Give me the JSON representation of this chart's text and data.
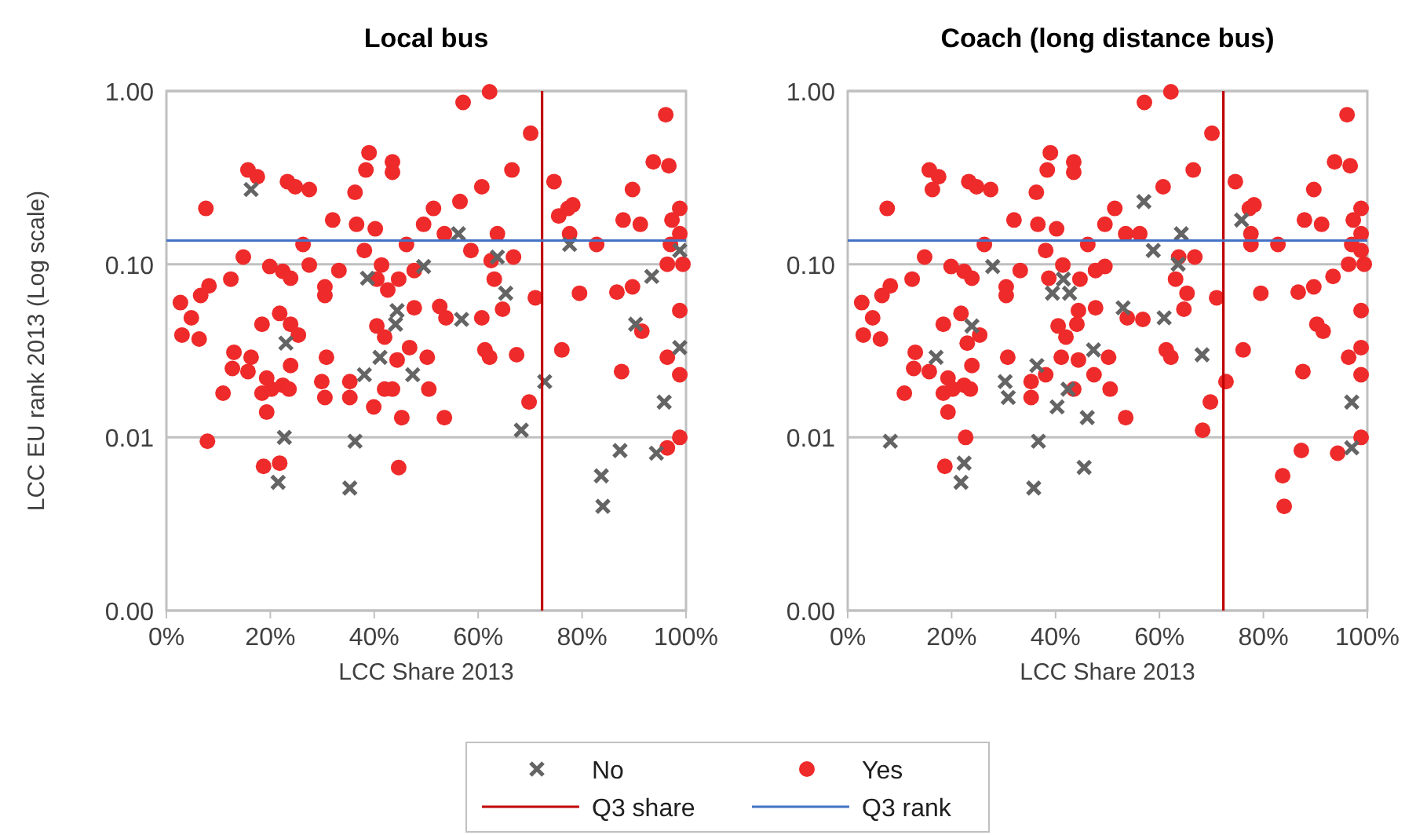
{
  "chart_data": [
    {
      "type": "scatter",
      "title": "Local bus",
      "xlabel": "LCC Share 2013",
      "ylabel": "LCC EU rank 2013 (Log scale)",
      "log": "y",
      "grid": "y",
      "legend": "bottom",
      "xlim": [
        0,
        100
      ],
      "xticks": [
        {
          "value": 0,
          "label": "0%"
        },
        {
          "value": 20,
          "label": "20%"
        },
        {
          "value": 40,
          "label": "40%"
        },
        {
          "value": 60,
          "label": "60%"
        },
        {
          "value": 80,
          "label": "80%"
        },
        {
          "value": 100,
          "label": "100%"
        }
      ],
      "ylim": [
        0.001,
        1
      ],
      "yticks": [
        {
          "value": 0.001,
          "label": "0.00"
        },
        {
          "value": 0.01,
          "label": "0.01"
        },
        {
          "value": 0.1,
          "label": "0.10"
        },
        {
          "value": 1,
          "label": "1.00"
        }
      ],
      "series": [
        {
          "name": "No",
          "color": "#646464",
          "marker": "cross",
          "x": [
            16.3,
            38.7,
            49.5,
            44.4,
            44.1,
            23.0,
            41.1,
            38.1,
            47.4,
            22.7,
            36.3,
            21.5,
            35.3,
            56.2,
            63.7,
            65.3,
            56.8,
            77.6,
            93.4,
            90.3,
            98.8,
            98.8,
            72.8,
            95.8,
            68.3,
            87.3,
            94.3,
            83.7,
            84.0
          ],
          "values": [
            0.27,
            0.083,
            0.097,
            0.054,
            0.045,
            0.035,
            0.029,
            0.023,
            0.023,
            0.01,
            0.0095,
            0.0055,
            0.0051,
            0.15,
            0.11,
            0.068,
            0.048,
            0.13,
            0.085,
            0.045,
            0.033,
            0.12,
            0.021,
            0.016,
            0.011,
            0.0084,
            0.0081,
            0.006,
            0.004
          ]
        },
        {
          "name": "Yes",
          "color": "#ee2a2a",
          "marker": "circle",
          "x": [
            7.6,
            15.7,
            17.5,
            23.3,
            24.8,
            27.5,
            39.0,
            38.4,
            43.5,
            43.5,
            36.3,
            32.0,
            36.6,
            40.2,
            26.3,
            38.1,
            46.2,
            49.5,
            14.8,
            19.9,
            22.4,
            23.9,
            27.5,
            33.2,
            41.4,
            12.4,
            8.2,
            6.6,
            2.7,
            4.8,
            30.5,
            30.5,
            40.5,
            42.6,
            44.7,
            47.7,
            47.7,
            18.4,
            21.8,
            23.9,
            25.4,
            40.5,
            42.0,
            3.0,
            6.3,
            13.0,
            12.7,
            16.3,
            15.7,
            23.9,
            30.8,
            44.4,
            46.8,
            19.3,
            22.4,
            23.6,
            18.4,
            20.2,
            10.9,
            29.9,
            30.5,
            35.3,
            35.3,
            42.0,
            43.5,
            39.9,
            19.3,
            45.3,
            50.5,
            7.9,
            18.7,
            21.8,
            44.7,
            57.1,
            62.2,
            70.1,
            96.1,
            66.5,
            60.7,
            74.6,
            56.5,
            51.4,
            75.5,
            77.3,
            78.2,
            89.7,
            93.7,
            96.7,
            87.9,
            91.2,
            98.8,
            97.3,
            53.5,
            63.7,
            58.6,
            77.6,
            82.8,
            62.5,
            66.8,
            97.0,
            98.8,
            96.4,
            99.4,
            63.1,
            71.0,
            64.7,
            79.5,
            86.7,
            89.7,
            52.6,
            53.8,
            60.7,
            98.8,
            91.5,
            50.2,
            61.3,
            62.2,
            67.4,
            76.1,
            87.6,
            96.4,
            98.8,
            53.5,
            69.8,
            98.8,
            96.4
          ],
          "values": [
            0.21,
            0.35,
            0.32,
            0.3,
            0.28,
            0.27,
            0.44,
            0.35,
            0.39,
            0.34,
            0.26,
            0.18,
            0.17,
            0.16,
            0.13,
            0.12,
            0.13,
            0.17,
            0.11,
            0.097,
            0.091,
            0.083,
            0.099,
            0.092,
            0.099,
            0.082,
            0.075,
            0.066,
            0.06,
            0.049,
            0.074,
            0.066,
            0.082,
            0.071,
            0.082,
            0.092,
            0.056,
            0.045,
            0.052,
            0.045,
            0.039,
            0.044,
            0.038,
            0.039,
            0.037,
            0.031,
            0.025,
            0.029,
            0.024,
            0.026,
            0.029,
            0.028,
            0.033,
            0.022,
            0.02,
            0.019,
            0.018,
            0.019,
            0.018,
            0.021,
            0.017,
            0.021,
            0.017,
            0.019,
            0.019,
            0.015,
            0.014,
            0.013,
            0.019,
            0.0095,
            0.0068,
            0.0071,
            0.0067,
            0.86,
            0.99,
            0.57,
            0.73,
            0.35,
            0.28,
            0.3,
            0.23,
            0.21,
            0.19,
            0.21,
            0.22,
            0.27,
            0.39,
            0.37,
            0.18,
            0.17,
            0.21,
            0.18,
            0.15,
            0.15,
            0.12,
            0.15,
            0.13,
            0.105,
            0.11,
            0.13,
            0.15,
            0.1,
            0.1,
            0.082,
            0.064,
            0.055,
            0.068,
            0.069,
            0.074,
            0.057,
            0.049,
            0.049,
            0.054,
            0.041,
            0.029,
            0.032,
            0.029,
            0.03,
            0.032,
            0.024,
            0.029,
            0.023,
            0.013,
            0.016,
            0.01,
            0.0087
          ]
        }
      ],
      "ref_lines": [
        {
          "axis": "x",
          "value": 72.3,
          "label": "Q3 share",
          "color": "#c00000"
        },
        {
          "axis": "y",
          "value": 0.137,
          "label": "Q3 rank",
          "color": "#4472c4"
        }
      ]
    },
    {
      "type": "scatter",
      "title": "Coach (long distance bus)",
      "xlabel": "LCC Share 2013",
      "log": "y",
      "grid": "y",
      "xlim": [
        0,
        100
      ],
      "xticks": [
        {
          "value": 0,
          "label": "0%"
        },
        {
          "value": 20,
          "label": "20%"
        },
        {
          "value": 40,
          "label": "40%"
        },
        {
          "value": 60,
          "label": "60%"
        },
        {
          "value": 80,
          "label": "80%"
        },
        {
          "value": 100,
          "label": "100%"
        }
      ],
      "ylim": [
        0.001,
        1
      ],
      "yticks": [
        {
          "value": 0.001,
          "label": "0.00"
        },
        {
          "value": 0.01,
          "label": "0.01"
        },
        {
          "value": 0.1,
          "label": "0.10"
        },
        {
          "value": 1,
          "label": "1.00"
        }
      ],
      "series": [
        {
          "color": "#646464",
          "marker": "cross",
          "x": [
            27.9,
            41.5,
            39.4,
            42.7,
            23.9,
            17.0,
            47.3,
            36.4,
            30.3,
            30.9,
            42.4,
            40.3,
            46.1,
            8.2,
            36.7,
            22.4,
            21.8,
            35.8,
            45.5,
            57.0,
            64.2,
            58.8,
            63.6,
            53.0,
            60.9,
            68.2,
            75.8,
            97.0,
            97.0
          ],
          "values": [
            0.097,
            0.082,
            0.068,
            0.068,
            0.044,
            0.029,
            0.032,
            0.026,
            0.021,
            0.017,
            0.019,
            0.015,
            0.013,
            0.0095,
            0.0095,
            0.0071,
            0.0055,
            0.0051,
            0.0067,
            0.23,
            0.15,
            0.12,
            0.1,
            0.056,
            0.049,
            0.03,
            0.18,
            0.016,
            0.0087
          ]
        },
        {
          "color": "#ee2a2a",
          "marker": "circle",
          "x": [
            7.6,
            15.7,
            17.5,
            23.3,
            24.8,
            27.5,
            39.0,
            38.4,
            43.5,
            43.5,
            36.3,
            32.0,
            36.6,
            40.2,
            26.3,
            38.1,
            46.2,
            49.5,
            14.8,
            19.9,
            22.4,
            23.9,
            33.2,
            41.4,
            12.4,
            8.2,
            6.6,
            2.7,
            4.8,
            30.5,
            30.5,
            44.7,
            47.7,
            47.7,
            18.4,
            21.8,
            25.4,
            40.5,
            42.0,
            3.0,
            6.3,
            13.0,
            12.7,
            15.7,
            23.9,
            30.8,
            44.4,
            19.3,
            22.4,
            23.6,
            18.4,
            20.2,
            10.9,
            35.3,
            35.3,
            43.5,
            19.3,
            50.5,
            18.7,
            57.1,
            62.2,
            70.1,
            96.1,
            66.5,
            60.7,
            74.6,
            51.4,
            77.3,
            78.2,
            89.7,
            93.7,
            96.7,
            87.9,
            91.2,
            98.8,
            97.3,
            53.5,
            77.6,
            82.8,
            66.8,
            97.0,
            98.8,
            96.4,
            99.4,
            63.1,
            71.0,
            64.7,
            79.5,
            86.7,
            89.7,
            53.8,
            98.8,
            91.5,
            50.2,
            61.3,
            62.2,
            76.1,
            87.6,
            96.4,
            98.8,
            53.5,
            69.8,
            98.8,
            16.3,
            38.7,
            49.5,
            44.4,
            44.1,
            23.0,
            41.1,
            38.1,
            47.4,
            22.7,
            56.2,
            63.7,
            65.3,
            56.8,
            77.6,
            93.4,
            90.3,
            98.8,
            98.8,
            72.8,
            68.3,
            87.3,
            94.3,
            83.7,
            84.0
          ],
          "values": [
            0.21,
            0.35,
            0.32,
            0.3,
            0.28,
            0.27,
            0.44,
            0.35,
            0.39,
            0.34,
            0.26,
            0.18,
            0.17,
            0.16,
            0.13,
            0.12,
            0.13,
            0.17,
            0.11,
            0.097,
            0.091,
            0.083,
            0.092,
            0.099,
            0.082,
            0.075,
            0.066,
            0.06,
            0.049,
            0.074,
            0.066,
            0.082,
            0.092,
            0.056,
            0.045,
            0.052,
            0.039,
            0.044,
            0.038,
            0.039,
            0.037,
            0.031,
            0.025,
            0.024,
            0.026,
            0.029,
            0.028,
            0.022,
            0.02,
            0.019,
            0.018,
            0.019,
            0.018,
            0.021,
            0.017,
            0.019,
            0.014,
            0.019,
            0.0068,
            0.86,
            0.99,
            0.57,
            0.73,
            0.35,
            0.28,
            0.3,
            0.21,
            0.21,
            0.22,
            0.27,
            0.39,
            0.37,
            0.18,
            0.17,
            0.21,
            0.18,
            0.15,
            0.15,
            0.13,
            0.11,
            0.13,
            0.15,
            0.1,
            0.1,
            0.082,
            0.064,
            0.055,
            0.068,
            0.069,
            0.074,
            0.049,
            0.054,
            0.041,
            0.029,
            0.032,
            0.029,
            0.032,
            0.024,
            0.029,
            0.023,
            0.013,
            0.016,
            0.01,
            0.27,
            0.083,
            0.097,
            0.054,
            0.045,
            0.035,
            0.029,
            0.023,
            0.023,
            0.01,
            0.15,
            0.11,
            0.068,
            0.048,
            0.13,
            0.085,
            0.045,
            0.033,
            0.12,
            0.021,
            0.011,
            0.0084,
            0.0081,
            0.006,
            0.004
          ]
        }
      ],
      "ref_lines": [
        {
          "axis": "x",
          "value": 72.3,
          "color": "#c00000"
        },
        {
          "axis": "y",
          "value": 0.137,
          "color": "#4472c4"
        }
      ]
    }
  ]
}
